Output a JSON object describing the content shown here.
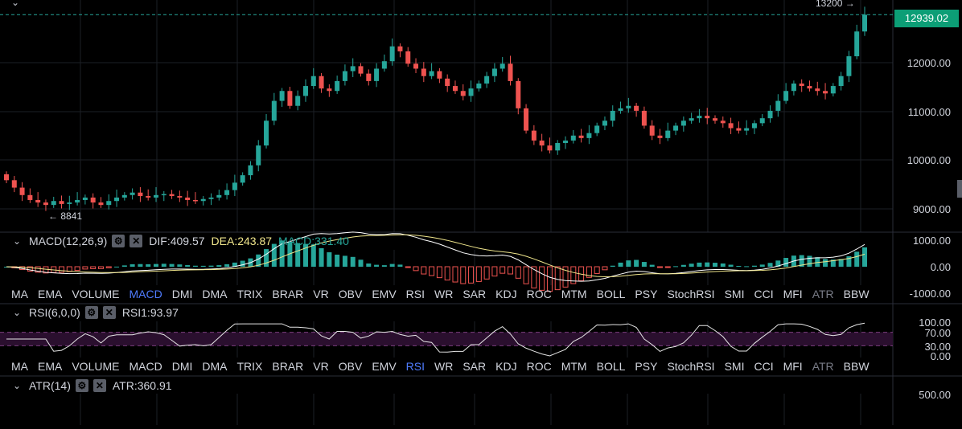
{
  "current_price": "12939.02",
  "high_marker": "13200 →",
  "low_marker": "← 8841",
  "price_axis": {
    "labels": [
      "12000.00",
      "11000.00",
      "10000.00",
      "9000.00"
    ],
    "values": [
      12000,
      11000,
      10000,
      9000
    ],
    "range": [
      8600,
      13300
    ]
  },
  "macd": {
    "title": "MACD(12,26,9)",
    "dif": "DIF:409.57",
    "dea": "DEA:243.87",
    "macd": "MACD:331.40",
    "axis": [
      "1000.00",
      "0.00",
      "-1000.00"
    ]
  },
  "rsi": {
    "title": "RSI(6,0,0)",
    "rsi1": "RSI1:93.97",
    "axis": [
      "100.00",
      "70.00",
      "30.00",
      "0.00"
    ]
  },
  "atr": {
    "title": "ATR(14)",
    "atr": "ATR:360.91",
    "axis": [
      "500.00"
    ]
  },
  "indicator_tabs": [
    "MA",
    "EMA",
    "VOLUME",
    "MACD",
    "DMI",
    "DMA",
    "TRIX",
    "BRAR",
    "VR",
    "OBV",
    "EMV",
    "RSI",
    "WR",
    "SAR",
    "KDJ",
    "ROC",
    "MTM",
    "BOLL",
    "PSY",
    "StochRSI",
    "SMI",
    "CCI",
    "MFI",
    "ATR",
    "BBW"
  ],
  "tabs_macd_active": "MACD",
  "tabs_rsi_active": "RSI",
  "dim_tabs": [
    "ATR"
  ],
  "colors": {
    "up": "#26a69a",
    "down": "#ef5350",
    "dif": "#ffffff",
    "dea": "#f0e68c",
    "rsi_band": "#2a0f2e",
    "price_line": "#26a69a"
  },
  "icons": [
    "collapse-chevron-icon",
    "settings-gear-icon",
    "close-icon"
  ],
  "chart_data": {
    "type": "candlestick",
    "closes": [
      9600,
      9450,
      9300,
      9200,
      9150,
      9100,
      9180,
      9120,
      9150,
      9200,
      9250,
      9150,
      9100,
      9180,
      9250,
      9300,
      9350,
      9280,
      9250,
      9300,
      9320,
      9280,
      9250,
      9200,
      9180,
      9220,
      9250,
      9300,
      9400,
      9550,
      9700,
      9900,
      10300,
      10800,
      11200,
      11400,
      11100,
      11300,
      11500,
      11700,
      11450,
      11400,
      11600,
      11800,
      11900,
      11750,
      11600,
      11850,
      12000,
      12300,
      12200,
      11950,
      11850,
      11700,
      11800,
      11650,
      11500,
      11400,
      11300,
      11450,
      11550,
      11700,
      11850,
      11950,
      11600,
      11050,
      10600,
      10400,
      10300,
      10200,
      10350,
      10400,
      10500,
      10450,
      10550,
      10700,
      10800,
      11000,
      11050,
      11100,
      11000,
      10700,
      10500,
      10450,
      10600,
      10700,
      10800,
      10850,
      10900,
      10850,
      10800,
      10750,
      10650,
      10600,
      10650,
      10750,
      10850,
      11000,
      11200,
      11400,
      11550,
      11500,
      11450,
      11400,
      11350,
      11500,
      11700,
      12100,
      12600,
      12939
    ],
    "high": 13200,
    "low": 8841
  }
}
